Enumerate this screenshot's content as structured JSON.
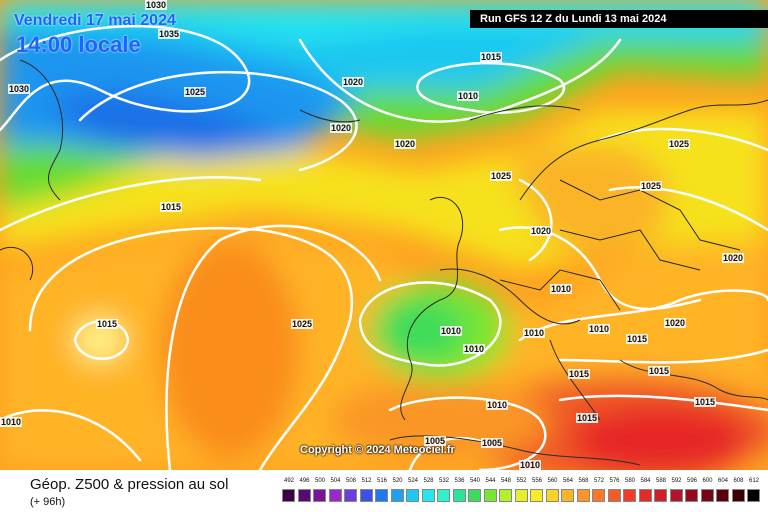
{
  "header": {
    "date_text": "Vendredi 17 mai 2024",
    "time_text": "14:00 locale",
    "run_text": "Run GFS 12 Z du Lundi 13 mai 2024"
  },
  "copyright": "Copyright © 2024 Meteociel.fr",
  "footer": {
    "title": "Géop. Z500 & pression au sol",
    "subtitle": "(+ 96h)"
  },
  "isobar_labels": [
    "1030",
    "1035",
    "1030",
    "1025",
    "1020",
    "1015",
    "1010",
    "1020",
    "1020",
    "1025",
    "1015",
    "1015",
    "1025",
    "1020",
    "1010",
    "1010",
    "1010",
    "1010",
    "1010",
    "1010",
    "1025",
    "1025",
    "1020",
    "1020",
    "1015",
    "1015",
    "1015",
    "1015",
    "1005",
    "1005",
    "1010",
    "1010",
    "1015"
  ],
  "scale": {
    "values": [
      "492",
      "496",
      "500",
      "504",
      "508",
      "512",
      "516",
      "520",
      "524",
      "528",
      "532",
      "536",
      "540",
      "544",
      "548",
      "552",
      "556",
      "560",
      "564",
      "568",
      "572",
      "576",
      "580",
      "584",
      "588",
      "592",
      "596",
      "600",
      "604",
      "608",
      "612"
    ],
    "colors": [
      "#3c0046",
      "#5a0a6e",
      "#7a1496",
      "#9b28c8",
      "#6e3cdc",
      "#3c50e6",
      "#1e78f0",
      "#1ea0f5",
      "#1ec8f5",
      "#28e6f0",
      "#32f0c8",
      "#28e696",
      "#3cdc5a",
      "#78e632",
      "#b4f028",
      "#e6f028",
      "#faeb28",
      "#fad228",
      "#fab428",
      "#fa9628",
      "#fa7828",
      "#f55a28",
      "#f03c28",
      "#e62828",
      "#d21e28",
      "#b41428",
      "#960a1e",
      "#780514",
      "#5a000a",
      "#3c0000",
      "#000000"
    ]
  }
}
